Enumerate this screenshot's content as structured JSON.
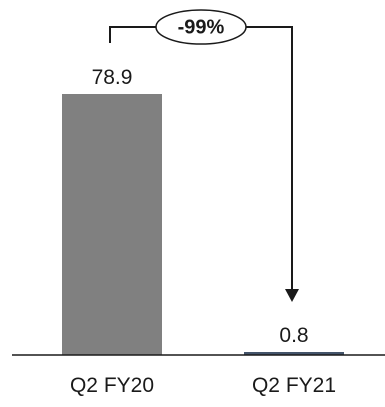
{
  "chart_data": {
    "type": "bar",
    "categories": [
      "Q2 FY20",
      "Q2 FY21"
    ],
    "values": [
      78.9,
      0.8
    ],
    "value_labels": [
      "78.9",
      "0.8"
    ],
    "colors": [
      "#808080",
      "#44546a"
    ],
    "title": "",
    "xlabel": "",
    "ylabel": "",
    "ylim": [
      0,
      78.9
    ],
    "grid": false,
    "annotation": {
      "text": "-99%",
      "from": "Q2 FY20",
      "to": "Q2 FY21"
    }
  }
}
